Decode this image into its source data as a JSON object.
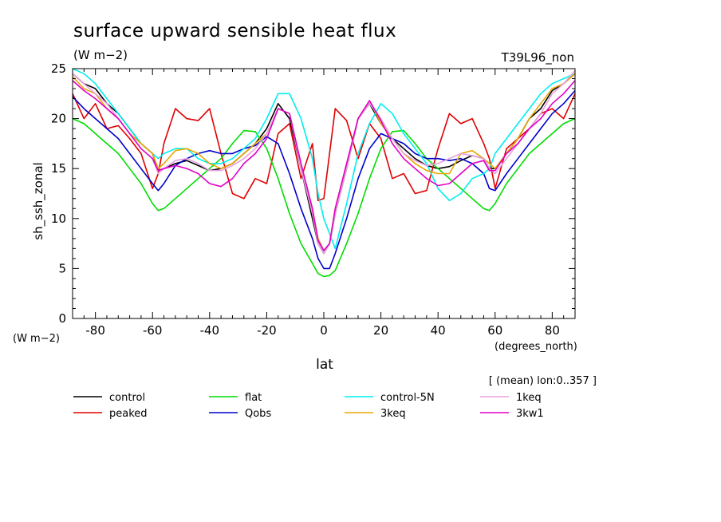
{
  "chart_data": {
    "type": "line",
    "title": "surface upward sensible heat flux",
    "subtitle": "(W m−2)",
    "top_right_label": "T39L96_non",
    "ylabel": "sh_ssh_zonal",
    "y_units_label": "(W m−2)",
    "xlabel": "lat",
    "x_units_label": "(degrees_north)",
    "note": "[ (mean) lon:0..357 ]",
    "xlim": [
      -88,
      88
    ],
    "ylim": [
      0,
      25
    ],
    "xticks": [
      -80,
      -60,
      -40,
      -20,
      0,
      20,
      40,
      60,
      80
    ],
    "yticks": [
      0,
      5,
      10,
      15,
      20,
      25
    ],
    "x": [
      -88,
      -84,
      -80,
      -76,
      -72,
      -68,
      -64,
      -60,
      -58,
      -56,
      -52,
      -48,
      -44,
      -40,
      -36,
      -32,
      -28,
      -24,
      -20,
      -16,
      -12,
      -8,
      -4,
      -2,
      0,
      2,
      4,
      8,
      12,
      16,
      20,
      24,
      28,
      32,
      36,
      40,
      44,
      48,
      52,
      56,
      58,
      60,
      64,
      68,
      72,
      76,
      80,
      84,
      88
    ],
    "series": [
      {
        "name": "control",
        "color": "#000000",
        "values": [
          24.5,
          23.5,
          23.0,
          21.5,
          20.5,
          19.0,
          17.5,
          16.5,
          14.8,
          15.0,
          15.5,
          15.8,
          15.3,
          14.8,
          15.0,
          15.5,
          16.5,
          17.5,
          19.0,
          21.5,
          20.0,
          15.0,
          10.0,
          7.5,
          6.5,
          7.5,
          10.5,
          15.0,
          20.0,
          21.5,
          19.5,
          18.0,
          17.0,
          16.0,
          15.3,
          15.0,
          15.2,
          15.8,
          16.3,
          16.0,
          15.0,
          15.0,
          16.5,
          18.0,
          20.0,
          21.0,
          22.8,
          23.5,
          24.5
        ]
      },
      {
        "name": "peaked",
        "color": "#e00000",
        "values": [
          22.5,
          20.0,
          21.5,
          19.0,
          19.3,
          18.0,
          16.5,
          13.0,
          14.5,
          17.5,
          21.0,
          20.0,
          19.8,
          21.0,
          16.5,
          12.5,
          12.0,
          14.0,
          13.5,
          18.5,
          19.5,
          14.0,
          17.5,
          11.8,
          12.0,
          16.5,
          21.0,
          19.8,
          16.0,
          19.5,
          18.0,
          14.0,
          14.5,
          12.5,
          12.8,
          17.0,
          20.5,
          19.5,
          20.0,
          17.5,
          16.0,
          13.0,
          17.0,
          18.0,
          19.0,
          20.5,
          21.0,
          20.0,
          22.5
        ]
      },
      {
        "name": "flat",
        "color": "#00dd00",
        "values": [
          20.0,
          19.5,
          18.5,
          17.5,
          16.5,
          15.0,
          13.5,
          11.5,
          10.8,
          11.0,
          12.0,
          13.0,
          14.0,
          15.0,
          16.0,
          17.5,
          18.8,
          18.7,
          17.0,
          14.0,
          10.5,
          7.5,
          5.5,
          4.5,
          4.2,
          4.3,
          4.8,
          7.5,
          10.5,
          14.0,
          17.0,
          18.7,
          18.8,
          17.5,
          16.0,
          15.0,
          14.0,
          13.0,
          12.0,
          11.0,
          10.8,
          11.5,
          13.5,
          15.0,
          16.5,
          17.5,
          18.5,
          19.5,
          20.0
        ]
      },
      {
        "name": "Qobs",
        "color": "#0000cc",
        "values": [
          22.2,
          21.0,
          20.0,
          19.0,
          18.0,
          16.5,
          15.0,
          13.5,
          12.8,
          13.5,
          15.3,
          16.0,
          16.5,
          16.8,
          16.5,
          16.5,
          17.0,
          17.3,
          18.2,
          17.5,
          14.5,
          11.0,
          8.0,
          6.0,
          5.0,
          5.0,
          6.5,
          10.0,
          14.0,
          17.0,
          18.5,
          18.0,
          17.5,
          16.5,
          16.0,
          16.0,
          15.8,
          16.0,
          15.5,
          14.5,
          13.0,
          12.8,
          14.5,
          16.0,
          17.5,
          19.0,
          20.5,
          21.5,
          22.8
        ]
      },
      {
        "name": "control-5N",
        "color": "#00eeee",
        "values": [
          25.0,
          24.5,
          23.5,
          22.0,
          20.5,
          19.0,
          17.5,
          16.5,
          16.0,
          16.5,
          17.0,
          17.0,
          16.0,
          15.5,
          15.5,
          16.0,
          17.0,
          18.0,
          20.0,
          22.5,
          22.5,
          20.0,
          16.0,
          12.5,
          10.0,
          8.5,
          7.0,
          11.5,
          16.5,
          19.5,
          21.5,
          20.5,
          18.5,
          17.0,
          15.5,
          13.0,
          11.8,
          12.5,
          14.0,
          14.5,
          15.0,
          16.5,
          18.0,
          19.5,
          21.0,
          22.5,
          23.5,
          24.0,
          24.5
        ]
      },
      {
        "name": "3keq",
        "color": "#e8a800",
        "values": [
          24.2,
          23.0,
          22.5,
          21.0,
          20.0,
          18.5,
          17.5,
          16.5,
          15.0,
          15.5,
          16.8,
          17.0,
          16.5,
          15.5,
          15.0,
          15.5,
          16.5,
          17.5,
          18.5,
          21.0,
          20.5,
          15.5,
          11.0,
          8.0,
          6.8,
          7.5,
          11.0,
          15.5,
          20.0,
          21.8,
          19.5,
          18.0,
          16.5,
          15.5,
          14.8,
          14.5,
          14.5,
          16.5,
          16.8,
          16.0,
          15.5,
          15.0,
          16.5,
          18.0,
          20.0,
          21.5,
          23.0,
          23.5,
          24.5
        ]
      },
      {
        "name": "1keq",
        "color": "#e8a0e0",
        "values": [
          24.5,
          23.5,
          22.5,
          21.5,
          20.0,
          18.5,
          17.0,
          16.0,
          14.5,
          15.0,
          15.8,
          16.0,
          15.5,
          14.8,
          14.8,
          15.3,
          16.0,
          17.0,
          18.5,
          21.0,
          20.5,
          15.0,
          10.5,
          7.5,
          6.5,
          7.5,
          10.5,
          15.0,
          20.0,
          21.5,
          20.0,
          18.0,
          16.5,
          15.8,
          15.3,
          15.5,
          16.0,
          16.5,
          16.3,
          16.0,
          15.0,
          14.5,
          16.0,
          17.5,
          19.0,
          20.5,
          22.5,
          23.5,
          24.8
        ]
      },
      {
        "name": "3kw1",
        "color": "#e000c8",
        "values": [
          23.8,
          22.8,
          22.0,
          21.0,
          20.0,
          18.5,
          17.0,
          16.0,
          14.8,
          15.0,
          15.3,
          15.0,
          14.5,
          13.5,
          13.2,
          14.0,
          15.5,
          16.5,
          18.0,
          21.0,
          20.5,
          15.5,
          11.0,
          7.8,
          6.8,
          7.5,
          11.0,
          15.5,
          20.0,
          21.8,
          19.8,
          17.5,
          16.0,
          15.0,
          14.0,
          13.3,
          13.5,
          14.5,
          15.5,
          15.8,
          14.8,
          14.8,
          16.5,
          17.5,
          19.0,
          20.0,
          21.5,
          22.5,
          23.8
        ]
      }
    ]
  }
}
